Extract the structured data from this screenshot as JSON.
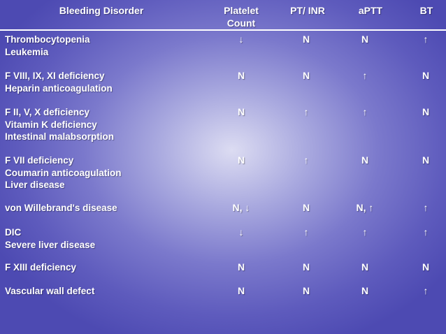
{
  "table": {
    "headers": {
      "disorder": "Bleeding Disorder",
      "platelet": "Platelet",
      "platelet_line2": "Count",
      "pt_inr": "PT/ INR",
      "aptt": "aPTT",
      "bt": "BT"
    },
    "rows": [
      {
        "disorder": [
          "Thrombocytopenia",
          "Leukemia"
        ],
        "platelet": "↓",
        "pt_inr": "N",
        "aptt": "N",
        "bt": "↑"
      },
      {
        "disorder": [
          "F VIII, IX, XI deficiency",
          "Heparin anticoagulation"
        ],
        "platelet": "N",
        "pt_inr": "N",
        "aptt": "↑",
        "bt": "N"
      },
      {
        "disorder": [
          "F II, V, X deficiency",
          "Vitamin K deficiency",
          "Intestinal malabsorption"
        ],
        "platelet": "N",
        "pt_inr": "↑",
        "aptt": "↑",
        "bt": "N"
      },
      {
        "disorder": [
          "F VII deficiency",
          "Coumarin anticoagulation",
          "Liver disease"
        ],
        "platelet": "N",
        "pt_inr": "↑",
        "aptt": "N",
        "bt": "N"
      },
      {
        "disorder": [
          "von Willebrand's disease"
        ],
        "platelet": "N, ↓",
        "pt_inr": "N",
        "aptt": "N, ↑",
        "bt": "↑"
      },
      {
        "disorder": [
          "DIC",
          "Severe liver disease"
        ],
        "platelet": "↓",
        "pt_inr": "↑",
        "aptt": "↑",
        "bt": "↑"
      },
      {
        "disorder": [
          "F XIII deficiency"
        ],
        "platelet": "N",
        "pt_inr": "N",
        "aptt": "N",
        "bt": "N"
      },
      {
        "disorder": [
          "Vascular wall defect"
        ],
        "platelet": "N",
        "pt_inr": "N",
        "aptt": "N",
        "bt": "↑"
      }
    ]
  }
}
